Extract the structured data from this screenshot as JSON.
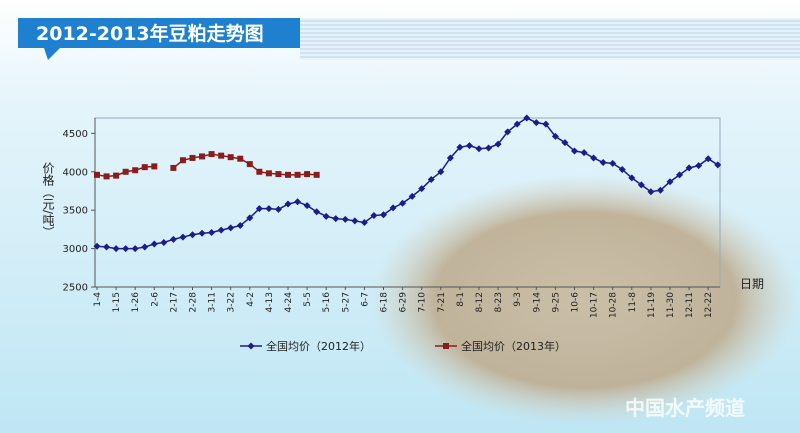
{
  "chart_data": {
    "type": "line",
    "title": "2012-2013年豆粕走势图",
    "y_label": "价格（元/吨）",
    "x_label": "日期",
    "watermark": "中国水产频道",
    "categories": [
      "1-4",
      null,
      "1-15",
      null,
      "1-26",
      null,
      "2-6",
      null,
      "2-17",
      null,
      "2-28",
      null,
      "3-11",
      null,
      "3-22",
      null,
      "4-2",
      null,
      "4-13",
      null,
      "4-24",
      null,
      "5-5",
      null,
      "5-16",
      null,
      "5-27",
      null,
      "6-7",
      null,
      "6-18",
      null,
      "6-29",
      null,
      "7-10",
      null,
      "7-21",
      null,
      "8-1",
      null,
      "8-12",
      null,
      "8-23",
      null,
      "9-3",
      null,
      "9-14",
      null,
      "9-25",
      null,
      "10-6",
      null,
      "10-17",
      null,
      "10-28",
      null,
      "11-8",
      null,
      "11-19",
      null,
      "11-30",
      null,
      "12-11",
      null,
      "12-22",
      null
    ],
    "series": [
      {
        "name": "全国均价（2012年）",
        "color": "#1c1c8a",
        "marker": "diamond",
        "values": [
          3030,
          3020,
          3000,
          3000,
          3000,
          3020,
          3060,
          3080,
          3120,
          3150,
          3180,
          3200,
          3210,
          3240,
          3270,
          3300,
          3400,
          3520,
          3520,
          3510,
          3580,
          3610,
          3560,
          3480,
          3420,
          3390,
          3380,
          3360,
          3340,
          3430,
          3440,
          3530,
          3590,
          3680,
          3780,
          3900,
          4000,
          4180,
          4320,
          4340,
          4300,
          4310,
          4360,
          4520,
          4620,
          4700,
          4640,
          4620,
          4460,
          4380,
          4270,
          4250,
          4180,
          4120,
          4110,
          4030,
          3920,
          3830,
          3740,
          3760,
          3870,
          3960,
          4050,
          4080,
          4170,
          4090
        ]
      },
      {
        "name": "全国均价（2013年）",
        "color": "#8a1c1c",
        "marker": "square",
        "values": [
          3960,
          3940,
          3950,
          4000,
          4020,
          4060,
          4070,
          null,
          4050,
          4150,
          4180,
          4200,
          4230,
          4210,
          4190,
          4170,
          4100,
          4000,
          3980,
          3970,
          3960,
          3960,
          3970,
          3960,
          null,
          null,
          null,
          null,
          null,
          null,
          null,
          null,
          null,
          null,
          null,
          null,
          null,
          null,
          null,
          null,
          null,
          null,
          null,
          null,
          null,
          null,
          null,
          null,
          null,
          null,
          null,
          null,
          null,
          null,
          null,
          null,
          null,
          null,
          null,
          null,
          null,
          null,
          null,
          null,
          null,
          null
        ]
      }
    ],
    "ylim": [
      2500,
      4700
    ],
    "yticks": [
      2500,
      3000,
      3500,
      4000,
      4500
    ],
    "grid": false
  }
}
